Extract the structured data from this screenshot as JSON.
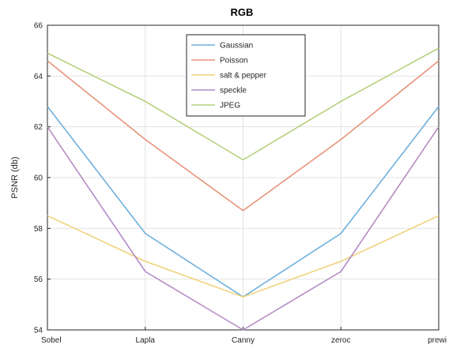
{
  "chart_data": {
    "type": "line",
    "title": "RGB",
    "xlabel": "",
    "ylabel": "PSNR (db)",
    "categories": [
      "Sobel",
      "Lapla",
      "Canny",
      "zeroc",
      "prewi"
    ],
    "ylim": [
      54,
      66
    ],
    "yticks": [
      54,
      56,
      58,
      60,
      62,
      64,
      66
    ],
    "grid": true,
    "legend_position": "top-center",
    "series": [
      {
        "name": "Gaussian",
        "color": "#6fb0dd",
        "values": [
          62.8,
          57.8,
          55.3,
          57.8,
          62.8
        ]
      },
      {
        "name": "Poisson",
        "color": "#e8937a",
        "values": [
          64.6,
          61.5,
          58.7,
          61.5,
          64.6
        ]
      },
      {
        "name": "salt & pepper",
        "color": "#f0d27a",
        "values": [
          58.5,
          56.7,
          55.3,
          56.7,
          58.5
        ]
      },
      {
        "name": "speckle",
        "color": "#b48cc6",
        "values": [
          62.0,
          56.3,
          54.0,
          56.3,
          62.0
        ]
      },
      {
        "name": "JPEG",
        "color": "#b6d07c",
        "values": [
          64.9,
          63.0,
          60.7,
          63.0,
          65.1
        ]
      }
    ]
  }
}
